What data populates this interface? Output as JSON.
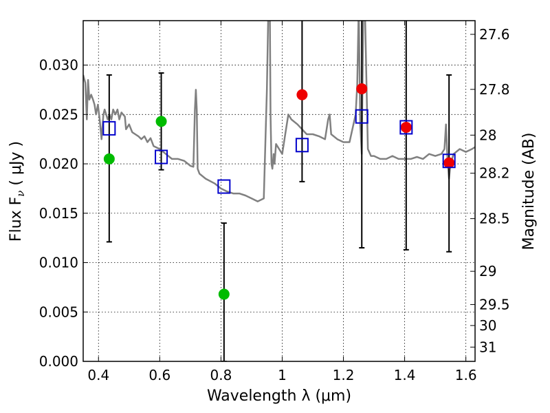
{
  "chart_data": {
    "type": "scatter",
    "xlabel": "Wavelength  λ (μm)",
    "ylabel": "Flux  F",
    "ylabel_sub": "ν",
    "ylabel_unit": " ( μJy )",
    "y2label": "Magnitude (AB)",
    "xlim": [
      0.35,
      1.63
    ],
    "ylim": [
      0.0,
      0.0345
    ],
    "grid": true,
    "x_ticks": [
      0.4,
      0.6,
      0.8,
      1.0,
      1.2,
      1.4,
      1.6
    ],
    "x_tick_labels": [
      "0.4",
      "0.6",
      "0.8",
      "1",
      "1.2",
      "1.4",
      "1.6"
    ],
    "y_ticks": [
      0.0,
      0.005,
      0.01,
      0.015,
      0.02,
      0.025,
      0.03
    ],
    "y_tick_labels": [
      "0.000",
      "0.005",
      "0.010",
      "0.015",
      "0.020",
      "0.025",
      "0.030"
    ],
    "mag_ticks": [
      27.6,
      27.8,
      28.0,
      28.2,
      28.5,
      29.0,
      29.5,
      30.0,
      31.0
    ],
    "mag_tick_labels": [
      "27.6",
      "27.8",
      "28",
      "28.2",
      "28.5",
      "29",
      "29.5",
      "30",
      "31"
    ],
    "colors": {
      "model": "#808080",
      "green": "#00bb00",
      "red": "#ee0000",
      "box": "#0000cc",
      "errorbar": "#000000"
    },
    "series": [
      {
        "kind": "line",
        "color": "#808080",
        "x": [
          0.35,
          0.357,
          0.362,
          0.366,
          0.37,
          0.376,
          0.382,
          0.387,
          0.392,
          0.398,
          0.404,
          0.41,
          0.416,
          0.42,
          0.425,
          0.43,
          0.436,
          0.442,
          0.448,
          0.455,
          0.462,
          0.468,
          0.475,
          0.48,
          0.486,
          0.49,
          0.5,
          0.51,
          0.52,
          0.53,
          0.54,
          0.55,
          0.56,
          0.57,
          0.58,
          0.6,
          0.62,
          0.64,
          0.66,
          0.68,
          0.7,
          0.71,
          0.715,
          0.718,
          0.721,
          0.724,
          0.73,
          0.75,
          0.78,
          0.8,
          0.82,
          0.84,
          0.86,
          0.88,
          0.9,
          0.92,
          0.94,
          0.95,
          0.955,
          0.958,
          0.96,
          0.962,
          0.965,
          0.968,
          0.972,
          0.975,
          0.98,
          0.99,
          1.0,
          1.01,
          1.02,
          1.03,
          1.05,
          1.08,
          1.1,
          1.12,
          1.14,
          1.15,
          1.155,
          1.16,
          1.18,
          1.2,
          1.22,
          1.24,
          1.245,
          1.25,
          1.255,
          1.26,
          1.265,
          1.27,
          1.28,
          1.29,
          1.3,
          1.32,
          1.34,
          1.36,
          1.38,
          1.4,
          1.42,
          1.44,
          1.46,
          1.48,
          1.5,
          1.52,
          1.53,
          1.535,
          1.54,
          1.545,
          1.55,
          1.56,
          1.58,
          1.6,
          1.62,
          1.63
        ],
        "y": [
          0.029,
          0.0282,
          0.0245,
          0.0285,
          0.0265,
          0.027,
          0.0265,
          0.026,
          0.025,
          0.026,
          0.0245,
          0.0225,
          0.025,
          0.0255,
          0.025,
          0.0245,
          0.025,
          0.0245,
          0.0255,
          0.025,
          0.0255,
          0.0245,
          0.0252,
          0.025,
          0.0248,
          0.0235,
          0.024,
          0.0232,
          0.023,
          0.0228,
          0.0225,
          0.0228,
          0.0222,
          0.0226,
          0.0218,
          0.0215,
          0.021,
          0.0205,
          0.0205,
          0.0203,
          0.0198,
          0.0197,
          0.0255,
          0.0275,
          0.0255,
          0.0195,
          0.019,
          0.0185,
          0.018,
          0.0175,
          0.0172,
          0.017,
          0.017,
          0.0168,
          0.0165,
          0.0162,
          0.0165,
          0.0275,
          0.036,
          0.036,
          0.0345,
          0.025,
          0.02,
          0.0195,
          0.021,
          0.02,
          0.022,
          0.0215,
          0.021,
          0.023,
          0.025,
          0.0245,
          0.024,
          0.023,
          0.023,
          0.0228,
          0.0225,
          0.0245,
          0.025,
          0.023,
          0.0225,
          0.0222,
          0.0222,
          0.025,
          0.028,
          0.036,
          0.024,
          0.021,
          0.036,
          0.036,
          0.0215,
          0.0208,
          0.0208,
          0.0205,
          0.0205,
          0.0208,
          0.0205,
          0.0205,
          0.0205,
          0.0207,
          0.0205,
          0.021,
          0.0208,
          0.021,
          0.0215,
          0.024,
          0.0205,
          0.0185,
          0.02,
          0.021,
          0.0215,
          0.0212,
          0.0215,
          0.0217
        ]
      },
      {
        "kind": "scatter",
        "marker": "circle",
        "color": "#00bb00",
        "x": [
          0.435,
          0.605,
          0.81
        ],
        "y": [
          0.0205,
          0.0243,
          0.0068
        ],
        "err_low": [
          0.0121,
          0.0194,
          0.0
        ],
        "err_high": [
          0.029,
          0.0292,
          0.014
        ]
      },
      {
        "kind": "scatter",
        "marker": "circle",
        "color": "#ee0000",
        "x": [
          1.065,
          1.26,
          1.405,
          1.545
        ],
        "y": [
          0.027,
          0.0276,
          0.0237,
          0.0201
        ],
        "err_low": [
          0.0182,
          0.0115,
          0.0113,
          0.0111
        ],
        "err_high": [
          0.036,
          0.036,
          0.036,
          0.029
        ]
      },
      {
        "kind": "scatter",
        "marker": "square",
        "color": "#0000cc",
        "x": [
          0.435,
          0.605,
          0.81,
          1.065,
          1.26,
          1.405,
          1.545
        ],
        "y": [
          0.0236,
          0.0207,
          0.0177,
          0.0219,
          0.0248,
          0.0237,
          0.0203
        ]
      }
    ]
  }
}
